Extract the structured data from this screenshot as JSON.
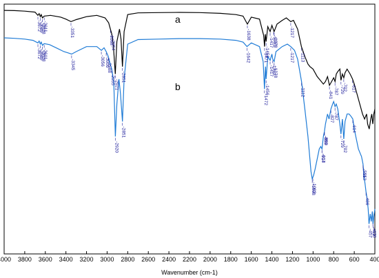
{
  "chart_data": {
    "type": "line",
    "xlabel": "Wavenumber (cm-1)",
    "ylabel": "",
    "xlim": [
      4000,
      400
    ],
    "x_ticks": [
      4000,
      3800,
      3600,
      3400,
      3200,
      3000,
      2800,
      2600,
      2400,
      2200,
      2000,
      1800,
      1600,
      1400,
      1200,
      1000,
      800,
      600,
      400
    ],
    "grid": false,
    "series": [
      {
        "name": "a",
        "color": "#000000",
        "points": [
          [
            4000,
            0.975
          ],
          [
            3900,
            0.974
          ],
          [
            3800,
            0.972
          ],
          [
            3700,
            0.968
          ],
          [
            3672,
            0.955
          ],
          [
            3660,
            0.962
          ],
          [
            3649,
            0.95
          ],
          [
            3640,
            0.958
          ],
          [
            3628,
            0.945
          ],
          [
            3611,
            0.952
          ],
          [
            3550,
            0.955
          ],
          [
            3450,
            0.948
          ],
          [
            3400,
            0.94
          ],
          [
            3351,
            0.93
          ],
          [
            3300,
            0.938
          ],
          [
            3200,
            0.95
          ],
          [
            3100,
            0.955
          ],
          [
            3020,
            0.945
          ],
          [
            2985,
            0.925
          ],
          [
            2968,
            0.9
          ],
          [
            2954,
            0.88
          ],
          [
            2940,
            0.84
          ],
          [
            2921,
            0.72
          ],
          [
            2905,
            0.85
          ],
          [
            2880,
            0.9
          ],
          [
            2865,
            0.86
          ],
          [
            2851,
            0.75
          ],
          [
            2835,
            0.89
          ],
          [
            2800,
            0.958
          ],
          [
            2700,
            0.965
          ],
          [
            2500,
            0.966
          ],
          [
            2300,
            0.967
          ],
          [
            2100,
            0.966
          ],
          [
            1900,
            0.963
          ],
          [
            1750,
            0.958
          ],
          [
            1680,
            0.952
          ],
          [
            1638,
            0.92
          ],
          [
            1600,
            0.948
          ],
          [
            1520,
            0.94
          ],
          [
            1480,
            0.875
          ],
          [
            1471,
            0.83
          ],
          [
            1464,
            0.88
          ],
          [
            1456,
            0.85
          ],
          [
            1440,
            0.91
          ],
          [
            1417,
            0.89
          ],
          [
            1400,
            0.915
          ],
          [
            1383,
            0.895
          ],
          [
            1378,
            0.89
          ],
          [
            1350,
            0.92
          ],
          [
            1300,
            0.935
          ],
          [
            1260,
            0.945
          ],
          [
            1217,
            0.93
          ],
          [
            1190,
            0.935
          ],
          [
            1150,
            0.9
          ],
          [
            1113,
            0.83
          ],
          [
            1080,
            0.79
          ],
          [
            1050,
            0.76
          ],
          [
            1030,
            0.75
          ],
          [
            1000,
            0.74
          ],
          [
            960,
            0.71
          ],
          [
            940,
            0.7
          ],
          [
            900,
            0.68
          ],
          [
            880,
            0.69
          ],
          [
            860,
            0.71
          ],
          [
            841,
            0.675
          ],
          [
            820,
            0.69
          ],
          [
            800,
            0.705
          ],
          [
            787,
            0.69
          ],
          [
            775,
            0.72
          ],
          [
            760,
            0.73
          ],
          [
            740,
            0.74
          ],
          [
            729,
            0.695
          ],
          [
            715,
            0.72
          ],
          [
            702,
            0.705
          ],
          [
            690,
            0.725
          ],
          [
            670,
            0.74
          ],
          [
            640,
            0.72
          ],
          [
            617,
            0.7
          ],
          [
            600,
            0.68
          ],
          [
            580,
            0.65
          ],
          [
            560,
            0.62
          ],
          [
            540,
            0.59
          ],
          [
            520,
            0.56
          ],
          [
            500,
            0.54
          ],
          [
            480,
            0.56
          ],
          [
            470,
            0.52
          ],
          [
            455,
            0.5
          ],
          [
            440,
            0.54
          ],
          [
            430,
            0.56
          ],
          [
            420,
            0.52
          ],
          [
            410,
            0.56
          ],
          [
            400,
            0.58
          ]
        ]
      },
      {
        "name": "b",
        "color": "#1e7bd6",
        "points": [
          [
            4000,
            0.865
          ],
          [
            3900,
            0.863
          ],
          [
            3800,
            0.86
          ],
          [
            3720,
            0.855
          ],
          [
            3672,
            0.845
          ],
          [
            3660,
            0.852
          ],
          [
            3649,
            0.84
          ],
          [
            3640,
            0.848
          ],
          [
            3628,
            0.835
          ],
          [
            3611,
            0.842
          ],
          [
            3560,
            0.838
          ],
          [
            3480,
            0.822
          ],
          [
            3420,
            0.81
          ],
          [
            3380,
            0.805
          ],
          [
            3345,
            0.8
          ],
          [
            3300,
            0.81
          ],
          [
            3200,
            0.83
          ],
          [
            3100,
            0.83
          ],
          [
            3056,
            0.815
          ],
          [
            3030,
            0.825
          ],
          [
            3009,
            0.81
          ],
          [
            2988,
            0.79
          ],
          [
            2970,
            0.76
          ],
          [
            2955,
            0.74
          ],
          [
            2935,
            0.68
          ],
          [
            2920,
            0.47
          ],
          [
            2905,
            0.6
          ],
          [
            2885,
            0.7
          ],
          [
            2870,
            0.64
          ],
          [
            2851,
            0.53
          ],
          [
            2835,
            0.7
          ],
          [
            2800,
            0.84
          ],
          [
            2700,
            0.858
          ],
          [
            2500,
            0.86
          ],
          [
            2300,
            0.862
          ],
          [
            2100,
            0.862
          ],
          [
            1900,
            0.86
          ],
          [
            1750,
            0.855
          ],
          [
            1680,
            0.848
          ],
          [
            1642,
            0.83
          ],
          [
            1600,
            0.845
          ],
          [
            1520,
            0.83
          ],
          [
            1485,
            0.77
          ],
          [
            1472,
            0.66
          ],
          [
            1462,
            0.75
          ],
          [
            1456,
            0.7
          ],
          [
            1440,
            0.79
          ],
          [
            1417,
            0.775
          ],
          [
            1400,
            0.8
          ],
          [
            1392,
            0.78
          ],
          [
            1378,
            0.77
          ],
          [
            1360,
            0.81
          ],
          [
            1300,
            0.83
          ],
          [
            1250,
            0.84
          ],
          [
            1217,
            0.83
          ],
          [
            1180,
            0.815
          ],
          [
            1150,
            0.78
          ],
          [
            1112,
            0.69
          ],
          [
            1080,
            0.58
          ],
          [
            1050,
            0.47
          ],
          [
            1020,
            0.33
          ],
          [
            1008,
            0.3
          ],
          [
            995,
            0.315
          ],
          [
            980,
            0.34
          ],
          [
            960,
            0.38
          ],
          [
            940,
            0.42
          ],
          [
            925,
            0.43
          ],
          [
            913,
            0.42
          ],
          [
            900,
            0.47
          ],
          [
            890,
            0.49
          ],
          [
            880,
            0.52
          ],
          [
            860,
            0.56
          ],
          [
            845,
            0.54
          ],
          [
            827,
            0.58
          ],
          [
            810,
            0.6
          ],
          [
            800,
            0.61
          ],
          [
            787,
            0.59
          ],
          [
            775,
            0.6
          ],
          [
            760,
            0.58
          ],
          [
            740,
            0.52
          ],
          [
            729,
            0.48
          ],
          [
            715,
            0.54
          ],
          [
            702,
            0.46
          ],
          [
            690,
            0.53
          ],
          [
            670,
            0.56
          ],
          [
            650,
            0.56
          ],
          [
            630,
            0.55
          ],
          [
            614,
            0.54
          ],
          [
            600,
            0.5
          ],
          [
            580,
            0.46
          ],
          [
            560,
            0.42
          ],
          [
            540,
            0.4
          ],
          [
            530,
            0.39
          ],
          [
            515,
            0.36
          ],
          [
            505,
            0.31
          ],
          [
            495,
            0.28
          ],
          [
            486,
            0.25
          ],
          [
            475,
            0.22
          ],
          [
            465,
            0.18
          ],
          [
            457,
            0.12
          ],
          [
            445,
            0.16
          ],
          [
            435,
            0.13
          ],
          [
            425,
            0.17
          ],
          [
            418,
            0.12
          ],
          [
            410,
            0.15
          ],
          [
            400,
            0.18
          ]
        ]
      }
    ],
    "annotations": [
      {
        "series": "a",
        "labels": [
          3672,
          3649,
          3628,
          3611,
          3351,
          2968,
          2954,
          2921,
          2851,
          1638,
          1471,
          1456,
          1417,
          1383,
          1378,
          1217,
          1113,
          841,
          787,
          729,
          702,
          617
        ]
      },
      {
        "series": "b",
        "labels": [
          3672,
          3649,
          3628,
          3611,
          3345,
          3056,
          3009,
          2988,
          2955,
          2920,
          2851,
          1642,
          1472,
          1456,
          1417,
          1392,
          1378,
          1217,
          1112,
          1008,
          1002,
          913,
          914,
          890,
          889,
          827,
          787,
          729,
          702,
          614,
          515,
          513,
          486,
          457,
          418,
          419
        ]
      }
    ],
    "series_labels": [
      "a",
      "b"
    ]
  }
}
